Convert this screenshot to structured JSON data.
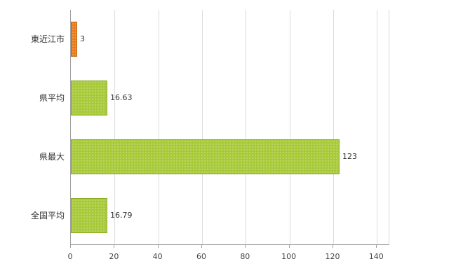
{
  "chart_data": {
    "type": "bar",
    "orientation": "horizontal",
    "title": "",
    "xlabel": "",
    "ylabel": "",
    "categories": [
      "東近江市",
      "県平均",
      "県最大",
      "全国平均"
    ],
    "values": [
      3,
      16.63,
      123,
      16.79
    ],
    "value_labels": [
      "3",
      "16.63",
      "123",
      "16.79"
    ],
    "bar_colors": [
      "#e87d1e",
      "#a8ca3a",
      "#a8ca3a",
      "#a8ca3a"
    ],
    "bar_border_colors": [
      "#c4660f",
      "#8aac25",
      "#8aac25",
      "#8aac25"
    ],
    "xticks": [
      0,
      20,
      40,
      60,
      80,
      100,
      120,
      140
    ],
    "xlim": [
      0,
      146
    ],
    "grid": true,
    "legend": "none",
    "colors": {
      "background": "#ffffff",
      "gridline": "#dcdcdc",
      "axis": "#a0a0a0",
      "text": "#333333"
    }
  }
}
